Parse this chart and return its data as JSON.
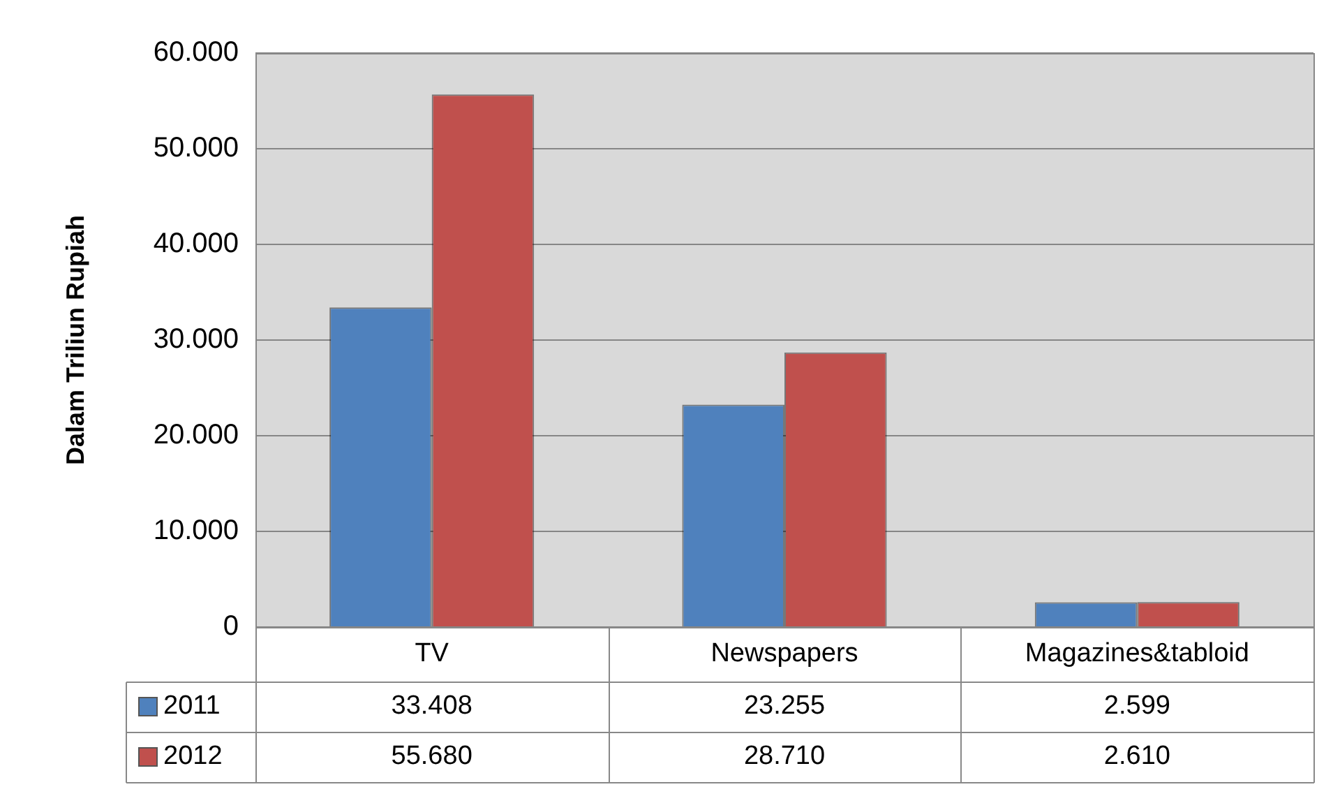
{
  "chart_data": {
    "type": "bar",
    "ylabel": "Dalam Triliun Rupiah",
    "categories": [
      "TV",
      "Newspapers",
      "Magazines&tabloid"
    ],
    "series": [
      {
        "name": "2011",
        "color": "#4f81bd",
        "values": [
          33408,
          23255,
          2599
        ],
        "value_labels": [
          "33.408",
          "23.255",
          "2.599"
        ]
      },
      {
        "name": "2012",
        "color": "#c0504d",
        "values": [
          55680,
          28710,
          2610
        ],
        "value_labels": [
          "55.680",
          "28.710",
          "2.610"
        ]
      }
    ],
    "ylim": [
      0,
      60000
    ],
    "yticks": [
      {
        "value": 0,
        "label": "0"
      },
      {
        "value": 10000,
        "label": "10.000"
      },
      {
        "value": 20000,
        "label": "20.000"
      },
      {
        "value": 30000,
        "label": "30.000"
      },
      {
        "value": 40000,
        "label": "40.000"
      },
      {
        "value": 50000,
        "label": "50.000"
      },
      {
        "value": 60000,
        "label": "60.000"
      }
    ],
    "grid": "y",
    "legend": "bottom"
  }
}
